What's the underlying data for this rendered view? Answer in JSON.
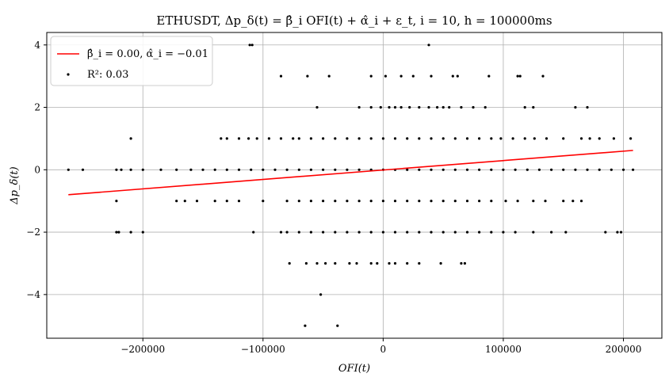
{
  "chart_data": {
    "type": "scatter",
    "title": "ETHUSDT, Δp_δ(t) = β̂_i OFI(t) + α̂_i + ε_t,  i = 10, h = 100000ms",
    "xlabel": "OFI(t)",
    "ylabel": "Δp_δ(t)",
    "xlim": [
      -280000,
      232000
    ],
    "ylim": [
      -5.4,
      4.4
    ],
    "xticks": [
      -200000,
      -100000,
      0,
      100000,
      200000
    ],
    "xtick_labels": [
      "−200000",
      "−100000",
      "0",
      "100000",
      "200000"
    ],
    "yticks": [
      -4,
      -2,
      0,
      2,
      4
    ],
    "ytick_labels": [
      "−4",
      "−2",
      "0",
      "2",
      "4"
    ],
    "grid": true,
    "legend_position": "top-left",
    "series": [
      {
        "name": "β̂_i = 0.00,  α̂_i = −0.01",
        "kind": "line",
        "color": "#ff0000",
        "x": [
          -262000,
          208000
        ],
        "y": [
          -0.8,
          0.62
        ]
      },
      {
        "name": "R²: 0.03",
        "kind": "scatter",
        "color": "#000000",
        "points": [
          [
            -111000,
            4
          ],
          [
            -109000,
            4
          ],
          [
            38000,
            4
          ],
          [
            -85000,
            3
          ],
          [
            -63000,
            3
          ],
          [
            -45000,
            3
          ],
          [
            -10000,
            3
          ],
          [
            2000,
            3
          ],
          [
            15000,
            3
          ],
          [
            25000,
            3
          ],
          [
            40000,
            3
          ],
          [
            58000,
            3
          ],
          [
            62000,
            3
          ],
          [
            88000,
            3
          ],
          [
            112000,
            3
          ],
          [
            114000,
            3
          ],
          [
            133000,
            3
          ],
          [
            -55000,
            2
          ],
          [
            -20000,
            2
          ],
          [
            -10000,
            2
          ],
          [
            -2000,
            2
          ],
          [
            5000,
            2
          ],
          [
            10000,
            2
          ],
          [
            15000,
            2
          ],
          [
            22000,
            2
          ],
          [
            30000,
            2
          ],
          [
            38000,
            2
          ],
          [
            45000,
            2
          ],
          [
            50000,
            2
          ],
          [
            55000,
            2
          ],
          [
            65000,
            2
          ],
          [
            75000,
            2
          ],
          [
            85000,
            2
          ],
          [
            118000,
            2
          ],
          [
            125000,
            2
          ],
          [
            160000,
            2
          ],
          [
            170000,
            2
          ],
          [
            -210000,
            1
          ],
          [
            -135000,
            1
          ],
          [
            -130000,
            1
          ],
          [
            -120000,
            1
          ],
          [
            -112000,
            1
          ],
          [
            -105000,
            1
          ],
          [
            -95000,
            1
          ],
          [
            -85000,
            1
          ],
          [
            -75000,
            1
          ],
          [
            -70000,
            1
          ],
          [
            -60000,
            1
          ],
          [
            -50000,
            1
          ],
          [
            -40000,
            1
          ],
          [
            -30000,
            1
          ],
          [
            -20000,
            1
          ],
          [
            -10000,
            1
          ],
          [
            0,
            1
          ],
          [
            10000,
            1
          ],
          [
            20000,
            1
          ],
          [
            30000,
            1
          ],
          [
            40000,
            1
          ],
          [
            50000,
            1
          ],
          [
            60000,
            1
          ],
          [
            70000,
            1
          ],
          [
            80000,
            1
          ],
          [
            90000,
            1
          ],
          [
            98000,
            1
          ],
          [
            108000,
            1
          ],
          [
            118000,
            1
          ],
          [
            126000,
            1
          ],
          [
            136000,
            1
          ],
          [
            150000,
            1
          ],
          [
            165000,
            1
          ],
          [
            172000,
            1
          ],
          [
            180000,
            1
          ],
          [
            192000,
            1
          ],
          [
            206000,
            1
          ],
          [
            -262000,
            0
          ],
          [
            -250000,
            0
          ],
          [
            -222000,
            0
          ],
          [
            -218000,
            0
          ],
          [
            -210000,
            0
          ],
          [
            -200000,
            0
          ],
          [
            -185000,
            0
          ],
          [
            -172000,
            0
          ],
          [
            -160000,
            0
          ],
          [
            -150000,
            0
          ],
          [
            -140000,
            0
          ],
          [
            -130000,
            0
          ],
          [
            -120000,
            0
          ],
          [
            -110000,
            0
          ],
          [
            -100000,
            0
          ],
          [
            -90000,
            0
          ],
          [
            -80000,
            0
          ],
          [
            -70000,
            0
          ],
          [
            -60000,
            0
          ],
          [
            -50000,
            0
          ],
          [
            -40000,
            0
          ],
          [
            -30000,
            0
          ],
          [
            -20000,
            0
          ],
          [
            -10000,
            0
          ],
          [
            0,
            0
          ],
          [
            10000,
            0
          ],
          [
            20000,
            0
          ],
          [
            30000,
            0
          ],
          [
            40000,
            0
          ],
          [
            50000,
            0
          ],
          [
            60000,
            0
          ],
          [
            70000,
            0
          ],
          [
            80000,
            0
          ],
          [
            90000,
            0
          ],
          [
            100000,
            0
          ],
          [
            110000,
            0
          ],
          [
            120000,
            0
          ],
          [
            130000,
            0
          ],
          [
            140000,
            0
          ],
          [
            150000,
            0
          ],
          [
            160000,
            0
          ],
          [
            170000,
            0
          ],
          [
            180000,
            0
          ],
          [
            190000,
            0
          ],
          [
            200000,
            0
          ],
          [
            208000,
            0
          ],
          [
            -222000,
            -1
          ],
          [
            -172000,
            -1
          ],
          [
            -165000,
            -1
          ],
          [
            -155000,
            -1
          ],
          [
            -140000,
            -1
          ],
          [
            -130000,
            -1
          ],
          [
            -120000,
            -1
          ],
          [
            -100000,
            -1
          ],
          [
            -80000,
            -1
          ],
          [
            -70000,
            -1
          ],
          [
            -60000,
            -1
          ],
          [
            -50000,
            -1
          ],
          [
            -40000,
            -1
          ],
          [
            -30000,
            -1
          ],
          [
            -20000,
            -1
          ],
          [
            -10000,
            -1
          ],
          [
            0,
            -1
          ],
          [
            10000,
            -1
          ],
          [
            20000,
            -1
          ],
          [
            30000,
            -1
          ],
          [
            40000,
            -1
          ],
          [
            50000,
            -1
          ],
          [
            60000,
            -1
          ],
          [
            70000,
            -1
          ],
          [
            80000,
            -1
          ],
          [
            90000,
            -1
          ],
          [
            102000,
            -1
          ],
          [
            112000,
            -1
          ],
          [
            125000,
            -1
          ],
          [
            135000,
            -1
          ],
          [
            150000,
            -1
          ],
          [
            158000,
            -1
          ],
          [
            165000,
            -1
          ],
          [
            -222000,
            -2
          ],
          [
            -220000,
            -2
          ],
          [
            -210000,
            -2
          ],
          [
            -200000,
            -2
          ],
          [
            -108000,
            -2
          ],
          [
            -85000,
            -2
          ],
          [
            -80000,
            -2
          ],
          [
            -70000,
            -2
          ],
          [
            -60000,
            -2
          ],
          [
            -50000,
            -2
          ],
          [
            -40000,
            -2
          ],
          [
            -30000,
            -2
          ],
          [
            -20000,
            -2
          ],
          [
            -10000,
            -2
          ],
          [
            0,
            -2
          ],
          [
            10000,
            -2
          ],
          [
            20000,
            -2
          ],
          [
            30000,
            -2
          ],
          [
            40000,
            -2
          ],
          [
            50000,
            -2
          ],
          [
            60000,
            -2
          ],
          [
            70000,
            -2
          ],
          [
            80000,
            -2
          ],
          [
            90000,
            -2
          ],
          [
            100000,
            -2
          ],
          [
            110000,
            -2
          ],
          [
            125000,
            -2
          ],
          [
            140000,
            -2
          ],
          [
            152000,
            -2
          ],
          [
            185000,
            -2
          ],
          [
            195000,
            -2
          ],
          [
            198000,
            -2
          ],
          [
            -78000,
            -3
          ],
          [
            -64000,
            -3
          ],
          [
            -55000,
            -3
          ],
          [
            -48000,
            -3
          ],
          [
            -40000,
            -3
          ],
          [
            -28000,
            -3
          ],
          [
            -22000,
            -3
          ],
          [
            -10000,
            -3
          ],
          [
            -5000,
            -3
          ],
          [
            5000,
            -3
          ],
          [
            10000,
            -3
          ],
          [
            20000,
            -3
          ],
          [
            30000,
            -3
          ],
          [
            48000,
            -3
          ],
          [
            65000,
            -3
          ],
          [
            68000,
            -3
          ],
          [
            -52000,
            -4
          ],
          [
            -65000,
            -5
          ],
          [
            -38000,
            -5
          ]
        ]
      }
    ]
  }
}
